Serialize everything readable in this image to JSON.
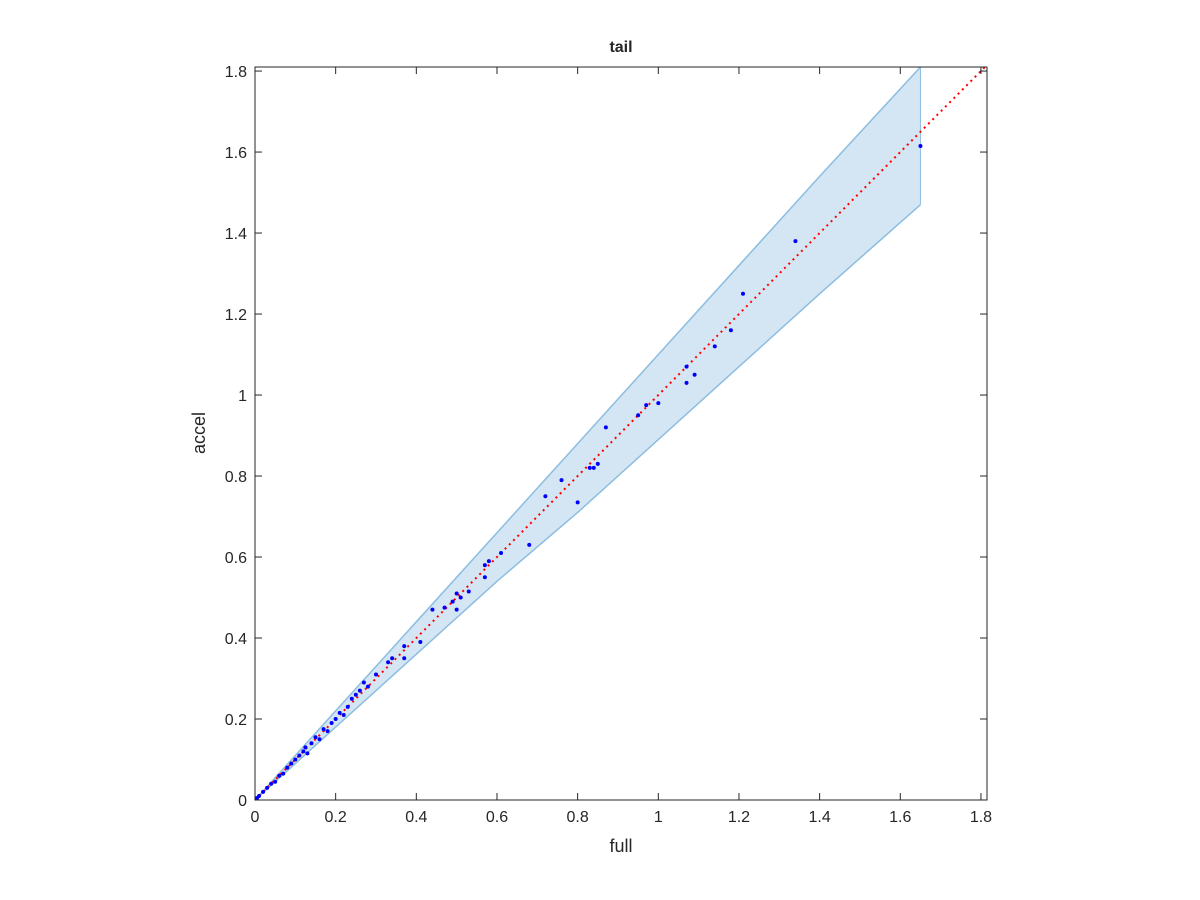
{
  "chart_data": {
    "type": "scatter",
    "title": "tail",
    "x_label": "full",
    "y_label": "accel",
    "xlim": [
      0,
      1.815
    ],
    "ylim": [
      0,
      1.81
    ],
    "xticks": [
      0,
      0.2,
      0.4,
      0.6,
      0.8,
      1,
      1.2,
      1.4,
      1.6,
      1.8
    ],
    "yticks": [
      0,
      0.2,
      0.4,
      0.6,
      0.8,
      1,
      1.2,
      1.4,
      1.6,
      1.8
    ],
    "grid": false,
    "band": {
      "x": [
        0,
        0.2,
        0.4,
        0.6,
        0.8,
        1.0,
        1.2,
        1.4,
        1.65
      ],
      "upper": [
        0,
        0.22,
        0.44,
        0.66,
        0.88,
        1.1,
        1.32,
        1.54,
        1.81
      ],
      "lower": [
        0,
        0.18,
        0.36,
        0.54,
        0.71,
        0.89,
        1.07,
        1.25,
        1.47
      ],
      "color": "#d4e6f3",
      "edge_color": "#8cbde0"
    },
    "reference_line": {
      "x": [
        0,
        1.815
      ],
      "values": [
        0,
        1.815
      ],
      "color": "#ff0000"
    },
    "series": [
      {
        "color": "#0000ff",
        "x": [
          0.005,
          0.01,
          0.02,
          0.03,
          0.04,
          0.05,
          0.06,
          0.07,
          0.08,
          0.09,
          0.1,
          0.11,
          0.12,
          0.125,
          0.13,
          0.14,
          0.15,
          0.16,
          0.17,
          0.18,
          0.19,
          0.2,
          0.21,
          0.22,
          0.23,
          0.24,
          0.25,
          0.26,
          0.27,
          0.28,
          0.3,
          0.33,
          0.34,
          0.37,
          0.37,
          0.41,
          0.44,
          0.47,
          0.49,
          0.5,
          0.5,
          0.51,
          0.53,
          0.57,
          0.57,
          0.58,
          0.61,
          0.68,
          0.72,
          0.76,
          0.8,
          0.83,
          0.84,
          0.85,
          0.87,
          0.95,
          0.97,
          1.0,
          1.07,
          1.07,
          1.09,
          1.14,
          1.18,
          1.21,
          1.34,
          1.65
        ],
        "values": [
          0.005,
          0.01,
          0.02,
          0.03,
          0.04,
          0.045,
          0.06,
          0.065,
          0.08,
          0.09,
          0.1,
          0.11,
          0.12,
          0.13,
          0.115,
          0.14,
          0.155,
          0.15,
          0.175,
          0.17,
          0.19,
          0.2,
          0.215,
          0.21,
          0.23,
          0.25,
          0.26,
          0.27,
          0.29,
          0.28,
          0.31,
          0.34,
          0.35,
          0.38,
          0.35,
          0.39,
          0.47,
          0.475,
          0.49,
          0.47,
          0.51,
          0.5,
          0.515,
          0.55,
          0.58,
          0.59,
          0.61,
          0.63,
          0.75,
          0.79,
          0.735,
          0.82,
          0.82,
          0.83,
          0.92,
          0.95,
          0.975,
          0.98,
          1.03,
          1.07,
          1.05,
          1.12,
          1.16,
          1.25,
          1.38,
          1.615
        ]
      }
    ]
  }
}
